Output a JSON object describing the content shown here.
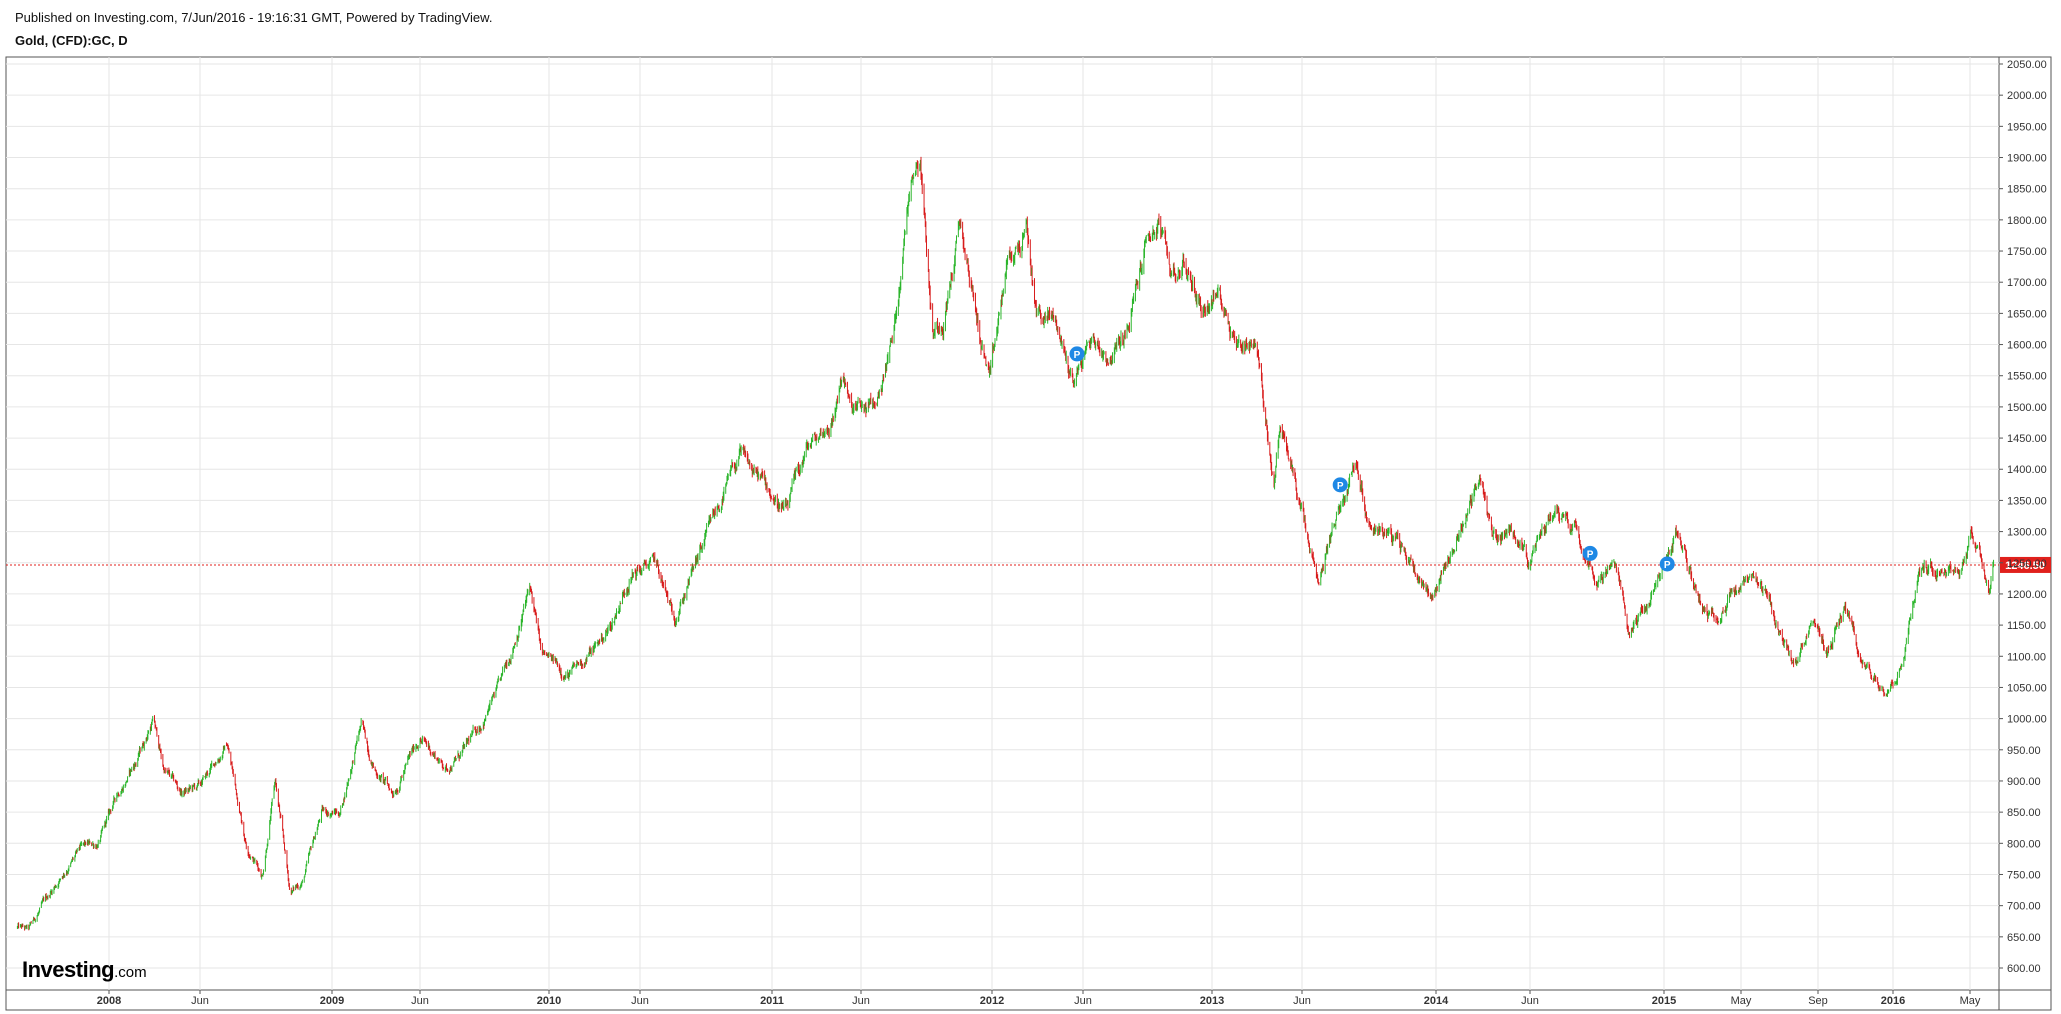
{
  "header": {
    "published": "Published on Investing.com, 7/Jun/2016 - 19:16:31 GMT, Powered by TradingView.",
    "symbol": "Gold, (CFD):GC, D"
  },
  "logo": {
    "brand": "Investing",
    "suffix": ".com"
  },
  "colors": {
    "up": "#2bb52b",
    "down": "#d81c1c",
    "price_line": "#e0201c",
    "grid": "#e6e6e6",
    "marker": "#1e88e5"
  },
  "chart_data": {
    "type": "candlestick",
    "title": "Gold, (CFD):GC, D",
    "ylim": [
      575,
      2060
    ],
    "y_ticks": [
      "600.00",
      "650.00",
      "700.00",
      "750.00",
      "800.00",
      "850.00",
      "900.00",
      "950.00",
      "1000.00",
      "1050.00",
      "1100.00",
      "1150.00",
      "1200.00",
      "1250.00",
      "1300.00",
      "1350.00",
      "1400.00",
      "1450.00",
      "1500.00",
      "1550.00",
      "1600.00",
      "1650.00",
      "1700.00",
      "1750.00",
      "1800.00",
      "1850.00",
      "1900.00",
      "1950.00",
      "2000.00",
      "2050.00"
    ],
    "x_ticks": [
      {
        "date": "2008-01-01",
        "label": "2008"
      },
      {
        "date": "2008-06-01",
        "label": "Jun"
      },
      {
        "date": "2009-01-01",
        "label": "2009"
      },
      {
        "date": "2009-06-01",
        "label": "Jun"
      },
      {
        "date": "2010-01-01",
        "label": "2010"
      },
      {
        "date": "2010-06-01",
        "label": "Jun"
      },
      {
        "date": "2011-01-01",
        "label": "2011"
      },
      {
        "date": "2011-06-01",
        "label": "Jun"
      },
      {
        "date": "2012-01-01",
        "label": "2012"
      },
      {
        "date": "2012-06-01",
        "label": "Jun"
      },
      {
        "date": "2013-01-01",
        "label": "2013"
      },
      {
        "date": "2013-06-01",
        "label": "Jun"
      },
      {
        "date": "2014-01-01",
        "label": "2014"
      },
      {
        "date": "2014-06-01",
        "label": "Jun"
      },
      {
        "date": "2015-01-01",
        "label": "2015"
      },
      {
        "date": "2015-05-01",
        "label": "May"
      },
      {
        "date": "2015-09-01",
        "label": "Sep"
      },
      {
        "date": "2016-01-01",
        "label": "2016"
      },
      {
        "date": "2016-05-01",
        "label": "May"
      }
    ],
    "last_price": 1246.5,
    "last_price_label": "1246.50",
    "series": [
      {
        "date_range": [
          "2007-08-01",
          "2016-06-07"
        ],
        "close_path": [
          [
            "2007-08-01",
            665
          ],
          [
            "2007-08-20",
            660
          ],
          [
            "2007-09-15",
            705
          ],
          [
            "2007-10-15",
            750
          ],
          [
            "2007-11-15",
            790
          ],
          [
            "2007-12-15",
            800
          ],
          [
            "2008-01-15",
            880
          ],
          [
            "2008-02-15",
            930
          ],
          [
            "2008-03-15",
            1000
          ],
          [
            "2008-04-01",
            920
          ],
          [
            "2008-05-01",
            880
          ],
          [
            "2008-06-01",
            890
          ],
          [
            "2008-07-15",
            960
          ],
          [
            "2008-08-15",
            800
          ],
          [
            "2008-09-10",
            750
          ],
          [
            "2008-10-01",
            900
          ],
          [
            "2008-10-25",
            720
          ],
          [
            "2008-11-15",
            740
          ],
          [
            "2008-12-15",
            850
          ],
          [
            "2009-01-15",
            850
          ],
          [
            "2009-02-20",
            990
          ],
          [
            "2009-03-15",
            920
          ],
          [
            "2009-04-15",
            880
          ],
          [
            "2009-06-01",
            970
          ],
          [
            "2009-07-15",
            920
          ],
          [
            "2009-08-15",
            950
          ],
          [
            "2009-09-15",
            1000
          ],
          [
            "2009-10-15",
            1060
          ],
          [
            "2009-12-01",
            1210
          ],
          [
            "2009-12-20",
            1100
          ],
          [
            "2010-02-05",
            1070
          ],
          [
            "2010-03-15",
            1110
          ],
          [
            "2010-04-15",
            1150
          ],
          [
            "2010-05-15",
            1230
          ],
          [
            "2010-06-25",
            1250
          ],
          [
            "2010-07-25",
            1160
          ],
          [
            "2010-09-01",
            1250
          ],
          [
            "2010-10-15",
            1360
          ],
          [
            "2010-11-10",
            1420
          ],
          [
            "2010-12-15",
            1380
          ],
          [
            "2011-01-25",
            1330
          ],
          [
            "2011-03-01",
            1430
          ],
          [
            "2011-04-15",
            1480
          ],
          [
            "2011-05-01",
            1560
          ],
          [
            "2011-05-15",
            1490
          ],
          [
            "2011-06-25",
            1500
          ],
          [
            "2011-07-25",
            1620
          ],
          [
            "2011-08-22",
            1880
          ],
          [
            "2011-09-06",
            1910
          ],
          [
            "2011-09-26",
            1620
          ],
          [
            "2011-10-15",
            1650
          ],
          [
            "2011-11-10",
            1790
          ],
          [
            "2011-12-15",
            1600
          ],
          [
            "2011-12-29",
            1540
          ],
          [
            "2012-01-25",
            1720
          ],
          [
            "2012-02-28",
            1780
          ],
          [
            "2012-03-15",
            1650
          ],
          [
            "2012-04-15",
            1640
          ],
          [
            "2012-05-15",
            1540
          ],
          [
            "2012-06-15",
            1610
          ],
          [
            "2012-07-15",
            1580
          ],
          [
            "2012-08-15",
            1620
          ],
          [
            "2012-09-15",
            1770
          ],
          [
            "2012-10-05",
            1790
          ],
          [
            "2012-10-25",
            1710
          ],
          [
            "2012-11-15",
            1730
          ],
          [
            "2012-12-15",
            1660
          ],
          [
            "2013-01-15",
            1680
          ],
          [
            "2013-02-15",
            1600
          ],
          [
            "2013-03-15",
            1610
          ],
          [
            "2013-04-15",
            1380
          ],
          [
            "2013-04-25",
            1470
          ],
          [
            "2013-05-20",
            1380
          ],
          [
            "2013-06-28",
            1200
          ],
          [
            "2013-07-15",
            1290
          ],
          [
            "2013-08-27",
            1420
          ],
          [
            "2013-09-15",
            1320
          ],
          [
            "2013-10-15",
            1300
          ],
          [
            "2013-11-15",
            1260
          ],
          [
            "2013-12-25",
            1200
          ],
          [
            "2014-01-15",
            1240
          ],
          [
            "2014-02-15",
            1320
          ],
          [
            "2014-03-15",
            1390
          ],
          [
            "2014-04-01",
            1290
          ],
          [
            "2014-05-15",
            1300
          ],
          [
            "2014-06-01",
            1250
          ],
          [
            "2014-07-10",
            1340
          ],
          [
            "2014-08-15",
            1310
          ],
          [
            "2014-09-15",
            1230
          ],
          [
            "2014-10-15",
            1240
          ],
          [
            "2014-11-07",
            1140
          ],
          [
            "2014-12-15",
            1200
          ],
          [
            "2015-01-22",
            1300
          ],
          [
            "2015-02-15",
            1220
          ],
          [
            "2015-03-15",
            1160
          ],
          [
            "2015-04-15",
            1200
          ],
          [
            "2015-05-15",
            1220
          ],
          [
            "2015-06-15",
            1180
          ],
          [
            "2015-07-24",
            1080
          ],
          [
            "2015-08-20",
            1160
          ],
          [
            "2015-09-15",
            1110
          ],
          [
            "2015-10-15",
            1180
          ],
          [
            "2015-11-15",
            1080
          ],
          [
            "2015-12-17",
            1050
          ],
          [
            "2016-01-15",
            1090
          ],
          [
            "2016-02-11",
            1240
          ],
          [
            "2016-03-15",
            1250
          ],
          [
            "2016-04-15",
            1240
          ],
          [
            "2016-05-02",
            1300
          ],
          [
            "2016-05-15",
            1270
          ],
          [
            "2016-05-31",
            1210
          ],
          [
            "2016-06-07",
            1246.5
          ]
        ]
      }
    ],
    "markers": [
      {
        "date": "2012-05-22",
        "price": 1585,
        "label": "P"
      },
      {
        "date": "2013-08-01",
        "price": 1375,
        "label": "P"
      },
      {
        "date": "2014-09-05",
        "price": 1265,
        "label": "P"
      },
      {
        "date": "2015-01-06",
        "price": 1248,
        "label": "P"
      }
    ]
  }
}
